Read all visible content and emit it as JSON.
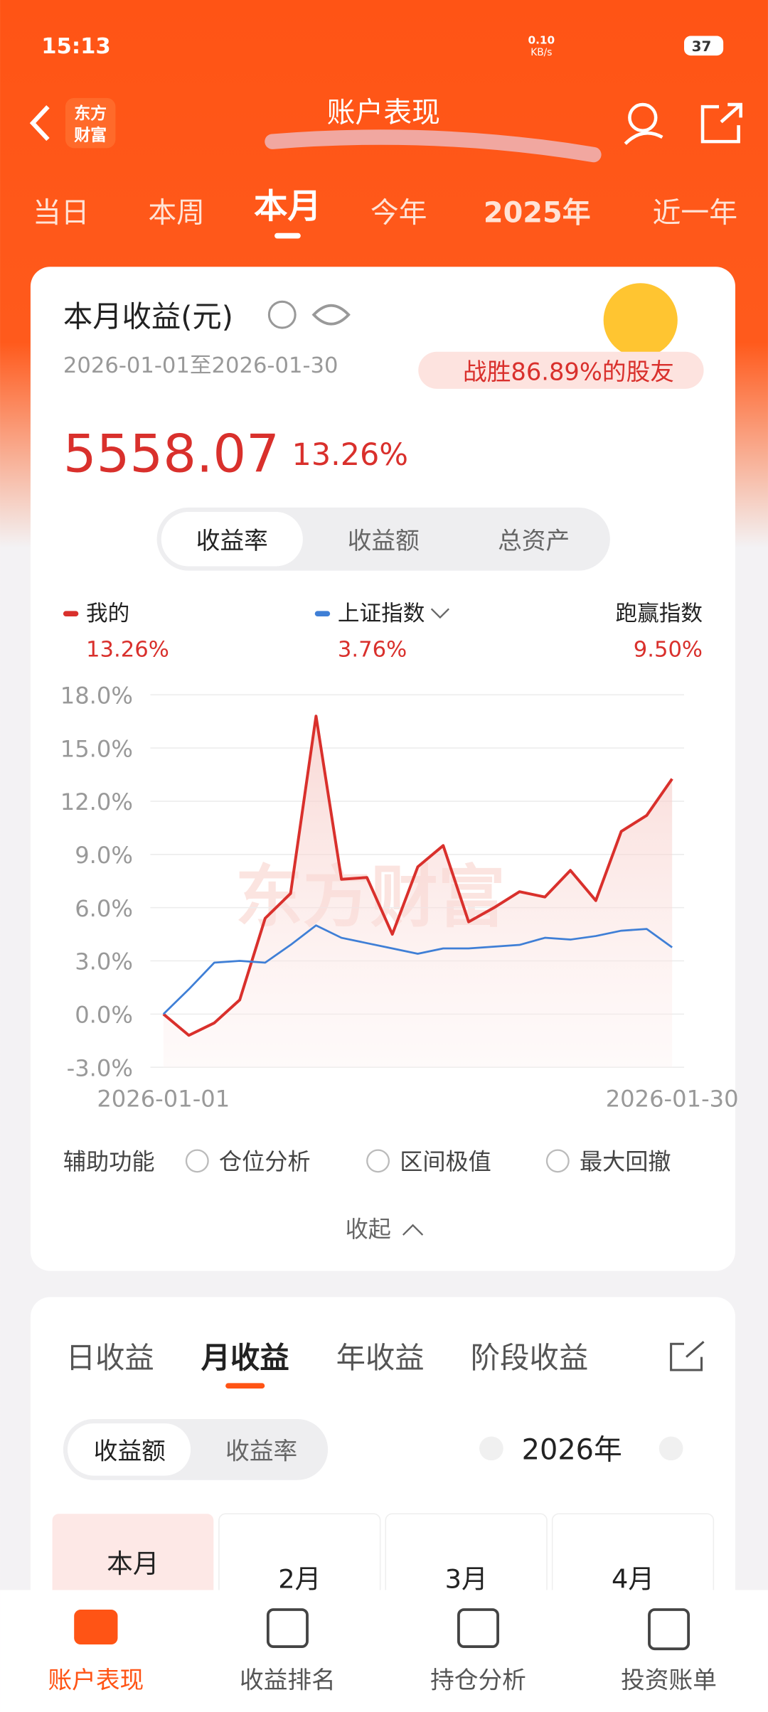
{
  "status_bar": {
    "time": "15:13",
    "speed": "0.10",
    "speed_unit": "KB/s",
    "battery": "37"
  },
  "header": {
    "logo": [
      "东方",
      "财富"
    ],
    "title": "账户表现"
  },
  "period_tabs": [
    "当日",
    "本周",
    "本月",
    "今年",
    "2025年",
    "近一年"
  ],
  "card": {
    "title": "本月收益(元)",
    "date_range": "2026-01-01至2026-01-30",
    "badge": "战胜86.89%的股友",
    "amount": "5558.07",
    "rate": "13.26%",
    "toggle": [
      "收益率",
      "收益额",
      "总资产"
    ]
  },
  "legend": {
    "latest": [
      "13.26%",
      "3.76%"
    ],
    "outperform_label": "跑赢指数",
    "outperform_value": "9.50%"
  },
  "chart_data": {
    "type": "line",
    "watermark": "东方财富",
    "categories": [
      "2026-01-01",
      null,
      null,
      null,
      null,
      null,
      null,
      null,
      null,
      null,
      null,
      null,
      null,
      null,
      null,
      null,
      null,
      null,
      null,
      null,
      "2026-01-30"
    ],
    "series": [
      {
        "name": "我的",
        "color": "#d9302c",
        "values": [
          0.0,
          -1.2,
          -0.5,
          0.8,
          5.4,
          6.8,
          16.8,
          7.6,
          7.7,
          4.5,
          8.3,
          9.5,
          5.2,
          6.0,
          6.9,
          6.6,
          8.1,
          6.4,
          10.3,
          11.2,
          13.26
        ]
      },
      {
        "name": "上证指数",
        "color": "#3f7fd6",
        "values": [
          0.0,
          1.4,
          2.9,
          3.0,
          2.9,
          3.9,
          5.0,
          4.3,
          4.0,
          3.7,
          3.4,
          3.7,
          3.7,
          3.8,
          3.9,
          4.3,
          4.2,
          4.4,
          4.7,
          4.8,
          3.76
        ]
      }
    ],
    "ylim": [
      -3,
      18
    ],
    "yticks": [
      {
        "value": -3,
        "label": "-3.0%"
      },
      {
        "value": 0,
        "label": "0.0%"
      },
      {
        "value": 3,
        "label": "3.0%"
      },
      {
        "value": 6,
        "label": "6.0%"
      },
      {
        "value": 9,
        "label": "9.0%"
      },
      {
        "value": 12,
        "label": "12.0%"
      },
      {
        "value": 15,
        "label": "15.0%"
      },
      {
        "value": 18,
        "label": "18.0%"
      }
    ],
    "grid": true
  },
  "tools": {
    "label": "辅助功能",
    "options": [
      "仓位分析",
      "区间极值",
      "最大回撤"
    ],
    "collapse": "收起"
  },
  "returns_card": {
    "tabs": [
      "日收益",
      "月收益",
      "年收益",
      "阶段收益"
    ],
    "toggle": [
      "收益额",
      "收益率"
    ],
    "year": "2026年",
    "months": [
      "本月",
      "2月",
      "3月",
      "4月"
    ]
  },
  "bottom_nav": [
    "账户表现",
    "收益排名",
    "持仓分析",
    "投资账单"
  ]
}
